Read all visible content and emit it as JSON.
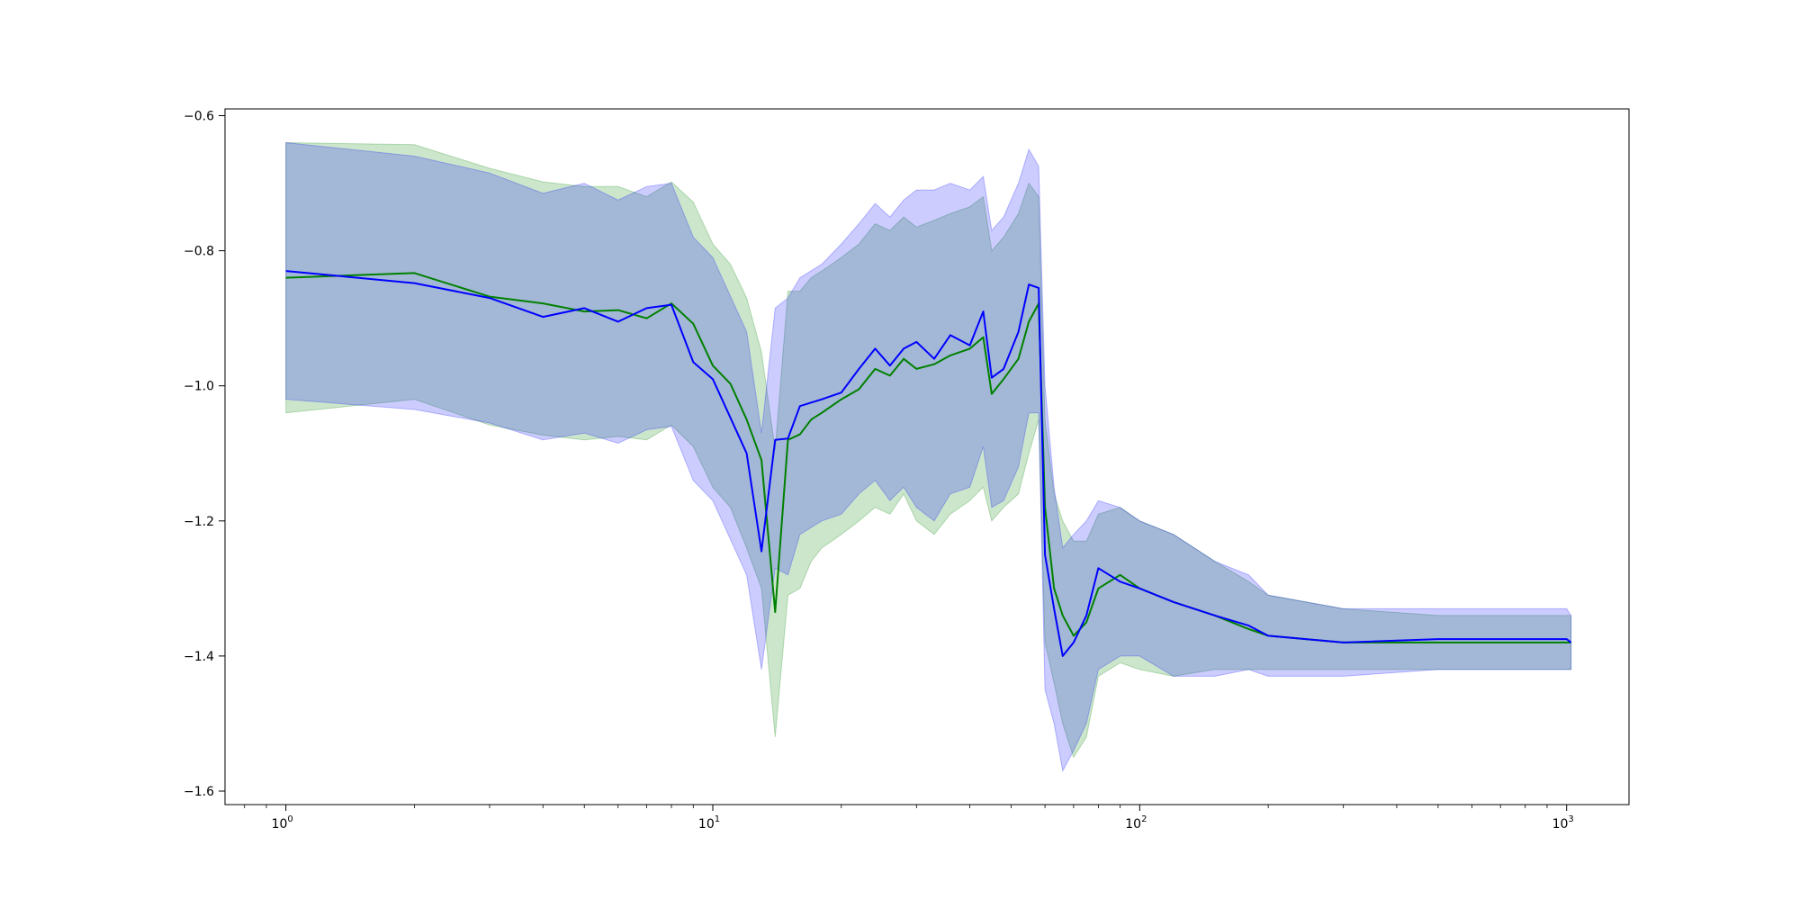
{
  "chart_data": {
    "type": "line",
    "title": "",
    "xlabel": "",
    "ylabel": "",
    "x_scale": "log",
    "xlim": [
      0.72,
      1400
    ],
    "ylim": [
      -1.62,
      -0.59
    ],
    "grid": false,
    "legend": "none",
    "x_ticks": [
      {
        "value": 1,
        "base": "10",
        "exp": "0"
      },
      {
        "value": 10,
        "base": "10",
        "exp": "1"
      },
      {
        "value": 100,
        "base": "10",
        "exp": "2"
      },
      {
        "value": 1000,
        "base": "10",
        "exp": "3"
      }
    ],
    "y_ticks": [
      {
        "value": -0.6,
        "label": "−0.6"
      },
      {
        "value": -0.8,
        "label": "−0.8"
      },
      {
        "value": -1.0,
        "label": "−1.0"
      },
      {
        "value": -1.2,
        "label": "−1.2"
      },
      {
        "value": -1.4,
        "label": "−1.4"
      },
      {
        "value": -1.6,
        "label": "−1.6"
      }
    ],
    "series": [
      {
        "color": "#008000",
        "band_color": "#008000",
        "band_opacity": 0.2,
        "points": [
          [
            1,
            -0.84,
            -0.64,
            -1.04
          ],
          [
            2,
            -0.833,
            -0.643,
            -1.02
          ],
          [
            3,
            -0.868,
            -0.678,
            -1.058
          ],
          [
            4,
            -0.878,
            -0.698,
            -1.073
          ],
          [
            5,
            -0.89,
            -0.705,
            -1.08
          ],
          [
            6,
            -0.888,
            -0.705,
            -1.075
          ],
          [
            7,
            -0.9,
            -0.72,
            -1.08
          ],
          [
            8,
            -0.878,
            -0.698,
            -1.058
          ],
          [
            9,
            -0.908,
            -0.728,
            -1.09
          ],
          [
            10,
            -0.97,
            -0.79,
            -1.15
          ],
          [
            11,
            -0.997,
            -0.82,
            -1.18
          ],
          [
            12,
            -1.05,
            -0.87,
            -1.24
          ],
          [
            13,
            -1.11,
            -0.95,
            -1.3
          ],
          [
            14,
            -1.335,
            -1.095,
            -1.52
          ],
          [
            15,
            -1.08,
            -0.86,
            -1.31
          ],
          [
            16,
            -1.072,
            -0.86,
            -1.3
          ],
          [
            17,
            -1.05,
            -0.84,
            -1.26
          ],
          [
            18,
            -1.04,
            -0.83,
            -1.24
          ],
          [
            20,
            -1.02,
            -0.81,
            -1.22
          ],
          [
            22,
            -1.005,
            -0.79,
            -1.2
          ],
          [
            24,
            -0.975,
            -0.76,
            -1.18
          ],
          [
            26,
            -0.985,
            -0.77,
            -1.19
          ],
          [
            28,
            -0.96,
            -0.75,
            -1.16
          ],
          [
            30,
            -0.975,
            -0.765,
            -1.2
          ],
          [
            33,
            -0.968,
            -0.755,
            -1.22
          ],
          [
            36,
            -0.955,
            -0.745,
            -1.19
          ],
          [
            40,
            -0.945,
            -0.735,
            -1.17
          ],
          [
            43,
            -0.928,
            -0.72,
            -1.15
          ],
          [
            45,
            -1.012,
            -0.8,
            -1.2
          ],
          [
            48,
            -0.99,
            -0.78,
            -1.18
          ],
          [
            52,
            -0.96,
            -0.745,
            -1.16
          ],
          [
            55,
            -0.905,
            -0.7,
            -1.1
          ],
          [
            58,
            -0.878,
            -0.72,
            -1.05
          ],
          [
            60,
            -1.18,
            -1.05,
            -1.38
          ],
          [
            63,
            -1.3,
            -1.16,
            -1.44
          ],
          [
            66,
            -1.34,
            -1.2,
            -1.5
          ],
          [
            70,
            -1.37,
            -1.23,
            -1.55
          ],
          [
            75,
            -1.35,
            -1.23,
            -1.52
          ],
          [
            80,
            -1.3,
            -1.19,
            -1.43
          ],
          [
            90,
            -1.28,
            -1.18,
            -1.41
          ],
          [
            100,
            -1.3,
            -1.2,
            -1.42
          ],
          [
            120,
            -1.32,
            -1.22,
            -1.43
          ],
          [
            150,
            -1.34,
            -1.26,
            -1.42
          ],
          [
            180,
            -1.36,
            -1.29,
            -1.42
          ],
          [
            200,
            -1.37,
            -1.31,
            -1.42
          ],
          [
            300,
            -1.38,
            -1.33,
            -1.42
          ],
          [
            500,
            -1.38,
            -1.34,
            -1.42
          ],
          [
            1000,
            -1.38,
            -1.34,
            -1.42
          ],
          [
            1024,
            -1.38,
            -1.34,
            -1.42
          ]
        ]
      },
      {
        "color": "#0000ff",
        "band_color": "#0000ff",
        "band_opacity": 0.2,
        "points": [
          [
            1,
            -0.83,
            -0.64,
            -1.02
          ],
          [
            2,
            -0.848,
            -0.66,
            -1.035
          ],
          [
            3,
            -0.87,
            -0.685,
            -1.055
          ],
          [
            4,
            -0.898,
            -0.715,
            -1.08
          ],
          [
            5,
            -0.885,
            -0.7,
            -1.07
          ],
          [
            6,
            -0.905,
            -0.725,
            -1.085
          ],
          [
            7,
            -0.885,
            -0.705,
            -1.065
          ],
          [
            8,
            -0.88,
            -0.7,
            -1.06
          ],
          [
            9,
            -0.965,
            -0.78,
            -1.14
          ],
          [
            10,
            -0.99,
            -0.81,
            -1.17
          ],
          [
            12,
            -1.1,
            -0.92,
            -1.28
          ],
          [
            13,
            -1.245,
            -1.07,
            -1.42
          ],
          [
            14,
            -1.08,
            -0.885,
            -1.27
          ],
          [
            15,
            -1.078,
            -0.87,
            -1.28
          ],
          [
            16,
            -1.03,
            -0.84,
            -1.22
          ],
          [
            18,
            -1.02,
            -0.82,
            -1.2
          ],
          [
            20,
            -1.01,
            -0.79,
            -1.19
          ],
          [
            22,
            -0.975,
            -0.76,
            -1.16
          ],
          [
            24,
            -0.945,
            -0.73,
            -1.14
          ],
          [
            26,
            -0.97,
            -0.75,
            -1.17
          ],
          [
            28,
            -0.945,
            -0.725,
            -1.15
          ],
          [
            30,
            -0.935,
            -0.71,
            -1.18
          ],
          [
            33,
            -0.96,
            -0.71,
            -1.2
          ],
          [
            36,
            -0.925,
            -0.7,
            -1.16
          ],
          [
            40,
            -0.94,
            -0.71,
            -1.15
          ],
          [
            43,
            -0.89,
            -0.69,
            -1.09
          ],
          [
            45,
            -0.988,
            -0.77,
            -1.18
          ],
          [
            48,
            -0.975,
            -0.75,
            -1.17
          ],
          [
            52,
            -0.92,
            -0.7,
            -1.12
          ],
          [
            55,
            -0.85,
            -0.65,
            -1.04
          ],
          [
            58,
            -0.855,
            -0.675,
            -1.04
          ],
          [
            60,
            -1.25,
            -1.0,
            -1.45
          ],
          [
            63,
            -1.33,
            -1.15,
            -1.5
          ],
          [
            66,
            -1.4,
            -1.24,
            -1.57
          ],
          [
            70,
            -1.38,
            -1.22,
            -1.54
          ],
          [
            75,
            -1.34,
            -1.2,
            -1.5
          ],
          [
            80,
            -1.27,
            -1.17,
            -1.42
          ],
          [
            90,
            -1.29,
            -1.18,
            -1.4
          ],
          [
            100,
            -1.3,
            -1.2,
            -1.4
          ],
          [
            120,
            -1.32,
            -1.22,
            -1.43
          ],
          [
            150,
            -1.34,
            -1.26,
            -1.43
          ],
          [
            180,
            -1.355,
            -1.28,
            -1.42
          ],
          [
            200,
            -1.37,
            -1.31,
            -1.43
          ],
          [
            300,
            -1.38,
            -1.33,
            -1.43
          ],
          [
            500,
            -1.375,
            -1.33,
            -1.42
          ],
          [
            1000,
            -1.375,
            -1.33,
            -1.42
          ],
          [
            1024,
            -1.38,
            -1.34,
            -1.42
          ]
        ]
      }
    ]
  }
}
